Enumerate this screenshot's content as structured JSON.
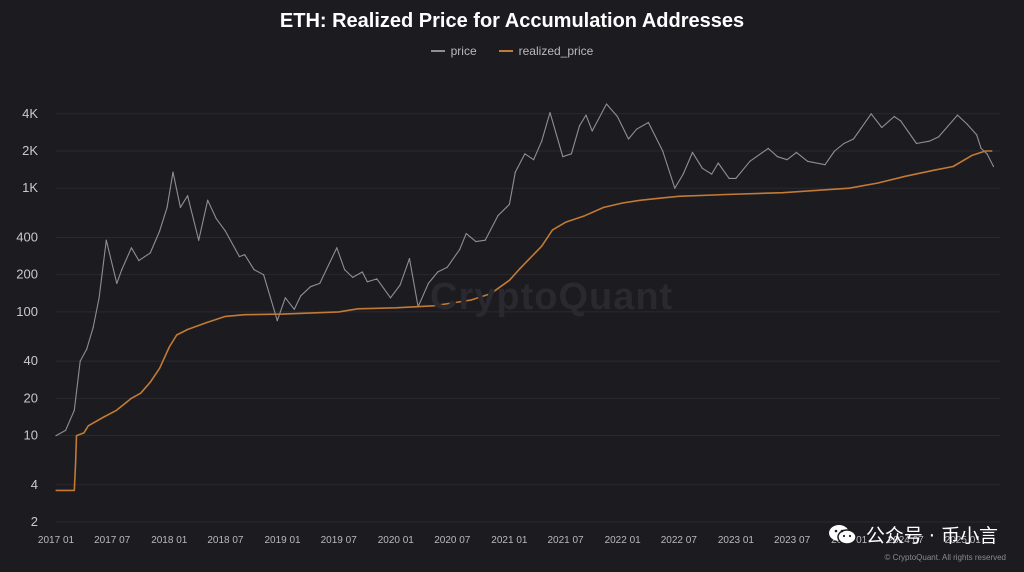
{
  "chart_data": {
    "type": "line",
    "title": "ETH: Realized Price for Accumulation Addresses",
    "yscale": "log",
    "ylim": [
      2,
      6000
    ],
    "xlim": [
      "2017-01",
      "2025-05"
    ],
    "y_ticks": [
      {
        "value": 2,
        "label": "2"
      },
      {
        "value": 4,
        "label": "4"
      },
      {
        "value": 10,
        "label": "10"
      },
      {
        "value": 20,
        "label": "20"
      },
      {
        "value": 40,
        "label": "40"
      },
      {
        "value": 100,
        "label": "100"
      },
      {
        "value": 200,
        "label": "200"
      },
      {
        "value": 400,
        "label": "400"
      },
      {
        "value": 1000,
        "label": "1K"
      },
      {
        "value": 2000,
        "label": "2K"
      },
      {
        "value": 4000,
        "label": "4K"
      }
    ],
    "x_ticks": [
      {
        "date": "2017-01",
        "label": "2017 01"
      },
      {
        "date": "2017-07",
        "label": "2017 07"
      },
      {
        "date": "2018-01",
        "label": "2018 01"
      },
      {
        "date": "2018-07",
        "label": "2018 07"
      },
      {
        "date": "2019-01",
        "label": "2019 01"
      },
      {
        "date": "2019-07",
        "label": "2019 07"
      },
      {
        "date": "2020-01",
        "label": "2020 01"
      },
      {
        "date": "2020-07",
        "label": "2020 07"
      },
      {
        "date": "2021-01",
        "label": "2021 01"
      },
      {
        "date": "2021-07",
        "label": "2021 07"
      },
      {
        "date": "2022-01",
        "label": "2022 01"
      },
      {
        "date": "2022-07",
        "label": "2022 07"
      },
      {
        "date": "2023-01",
        "label": "2023 01"
      },
      {
        "date": "2023-07",
        "label": "2023 07"
      },
      {
        "date": "2024-01",
        "label": "2024 01"
      },
      {
        "date": "2024-07",
        "label": "2024 07"
      },
      {
        "date": "2025-01",
        "label": "2025 01"
      }
    ],
    "legend_position": "top-center",
    "series": [
      {
        "name": "price",
        "color": "#8e8e96",
        "points": [
          [
            "2017-01-01",
            10
          ],
          [
            "2017-02-01",
            11
          ],
          [
            "2017-03-01",
            16
          ],
          [
            "2017-03-20",
            40
          ],
          [
            "2017-04-10",
            50
          ],
          [
            "2017-05-01",
            75
          ],
          [
            "2017-05-20",
            130
          ],
          [
            "2017-06-12",
            380
          ],
          [
            "2017-07-16",
            170
          ],
          [
            "2017-08-01",
            220
          ],
          [
            "2017-09-01",
            330
          ],
          [
            "2017-09-25",
            260
          ],
          [
            "2017-11-01",
            300
          ],
          [
            "2017-12-01",
            450
          ],
          [
            "2017-12-25",
            700
          ],
          [
            "2018-01-13",
            1350
          ],
          [
            "2018-02-06",
            700
          ],
          [
            "2018-03-01",
            870
          ],
          [
            "2018-04-06",
            380
          ],
          [
            "2018-05-05",
            800
          ],
          [
            "2018-06-01",
            570
          ],
          [
            "2018-07-01",
            450
          ],
          [
            "2018-08-15",
            280
          ],
          [
            "2018-09-01",
            290
          ],
          [
            "2018-10-01",
            220
          ],
          [
            "2018-11-01",
            200
          ],
          [
            "2018-12-15",
            85
          ],
          [
            "2019-01-10",
            130
          ],
          [
            "2019-02-08",
            105
          ],
          [
            "2019-03-01",
            135
          ],
          [
            "2019-04-01",
            160
          ],
          [
            "2019-05-01",
            170
          ],
          [
            "2019-06-25",
            330
          ],
          [
            "2019-07-20",
            220
          ],
          [
            "2019-08-15",
            190
          ],
          [
            "2019-09-15",
            210
          ],
          [
            "2019-10-01",
            175
          ],
          [
            "2019-11-01",
            185
          ],
          [
            "2019-12-15",
            130
          ],
          [
            "2020-01-15",
            165
          ],
          [
            "2020-02-14",
            270
          ],
          [
            "2020-03-13",
            110
          ],
          [
            "2020-04-15",
            170
          ],
          [
            "2020-05-15",
            210
          ],
          [
            "2020-06-15",
            230
          ],
          [
            "2020-07-25",
            320
          ],
          [
            "2020-08-15",
            430
          ],
          [
            "2020-09-15",
            370
          ],
          [
            "2020-10-15",
            380
          ],
          [
            "2020-11-25",
            600
          ],
          [
            "2021-01-01",
            740
          ],
          [
            "2021-01-20",
            1350
          ],
          [
            "2021-02-20",
            1900
          ],
          [
            "2021-03-20",
            1700
          ],
          [
            "2021-04-15",
            2400
          ],
          [
            "2021-05-12",
            4100
          ],
          [
            "2021-06-22",
            1800
          ],
          [
            "2021-07-20",
            1900
          ],
          [
            "2021-08-15",
            3200
          ],
          [
            "2021-09-05",
            3900
          ],
          [
            "2021-09-25",
            2900
          ],
          [
            "2021-11-10",
            4800
          ],
          [
            "2021-12-15",
            3800
          ],
          [
            "2022-01-20",
            2500
          ],
          [
            "2022-02-15",
            3000
          ],
          [
            "2022-03-25",
            3400
          ],
          [
            "2022-05-10",
            2000
          ],
          [
            "2022-06-18",
            1000
          ],
          [
            "2022-07-15",
            1300
          ],
          [
            "2022-08-14",
            1950
          ],
          [
            "2022-09-15",
            1450
          ],
          [
            "2022-10-15",
            1300
          ],
          [
            "2022-11-05",
            1600
          ],
          [
            "2022-12-10",
            1200
          ],
          [
            "2023-01-01",
            1200
          ],
          [
            "2023-02-15",
            1650
          ],
          [
            "2023-04-15",
            2100
          ],
          [
            "2023-05-15",
            1800
          ],
          [
            "2023-06-15",
            1700
          ],
          [
            "2023-07-15",
            1950
          ],
          [
            "2023-08-20",
            1650
          ],
          [
            "2023-10-15",
            1550
          ],
          [
            "2023-11-15",
            2000
          ],
          [
            "2023-12-15",
            2300
          ],
          [
            "2024-01-15",
            2500
          ],
          [
            "2024-03-12",
            4000
          ],
          [
            "2024-04-15",
            3100
          ],
          [
            "2024-05-25",
            3800
          ],
          [
            "2024-06-15",
            3500
          ],
          [
            "2024-08-05",
            2300
          ],
          [
            "2024-09-15",
            2400
          ],
          [
            "2024-10-15",
            2600
          ],
          [
            "2024-12-15",
            3900
          ],
          [
            "2025-01-15",
            3300
          ],
          [
            "2025-02-15",
            2700
          ],
          [
            "2025-03-01",
            2100
          ],
          [
            "2025-03-20",
            1900
          ],
          [
            "2025-04-10",
            1500
          ]
        ]
      },
      {
        "name": "realized_price",
        "color": "#c27a35",
        "points": [
          [
            "2017-01-01",
            3.6
          ],
          [
            "2017-03-01",
            3.6
          ],
          [
            "2017-03-05",
            6
          ],
          [
            "2017-03-08",
            10
          ],
          [
            "2017-04-01",
            10.5
          ],
          [
            "2017-04-15",
            12
          ],
          [
            "2017-06-01",
            14
          ],
          [
            "2017-07-15",
            16
          ],
          [
            "2017-09-01",
            20
          ],
          [
            "2017-10-01",
            22
          ],
          [
            "2017-11-01",
            27
          ],
          [
            "2017-12-01",
            35
          ],
          [
            "2018-01-01",
            52
          ],
          [
            "2018-01-25",
            65
          ],
          [
            "2018-03-01",
            72
          ],
          [
            "2018-05-01",
            82
          ],
          [
            "2018-07-01",
            92
          ],
          [
            "2018-09-01",
            95
          ],
          [
            "2019-01-01",
            96
          ],
          [
            "2019-07-01",
            100
          ],
          [
            "2019-09-01",
            106
          ],
          [
            "2020-01-01",
            108
          ],
          [
            "2020-05-01",
            112
          ],
          [
            "2020-07-01",
            118
          ],
          [
            "2020-09-01",
            125
          ],
          [
            "2020-11-01",
            140
          ],
          [
            "2021-01-01",
            180
          ],
          [
            "2021-02-01",
            220
          ],
          [
            "2021-03-01",
            260
          ],
          [
            "2021-04-15",
            340
          ],
          [
            "2021-05-20",
            460
          ],
          [
            "2021-07-01",
            530
          ],
          [
            "2021-09-01",
            600
          ],
          [
            "2021-11-01",
            700
          ],
          [
            "2022-01-01",
            760
          ],
          [
            "2022-03-01",
            800
          ],
          [
            "2022-05-01",
            830
          ],
          [
            "2022-07-01",
            860
          ],
          [
            "2022-12-01",
            890
          ],
          [
            "2023-06-01",
            920
          ],
          [
            "2024-01-01",
            1000
          ],
          [
            "2024-04-01",
            1100
          ],
          [
            "2024-07-01",
            1250
          ],
          [
            "2024-10-01",
            1400
          ],
          [
            "2024-12-01",
            1500
          ],
          [
            "2025-02-01",
            1850
          ],
          [
            "2025-03-15",
            2000
          ],
          [
            "2025-04-05",
            2000
          ]
        ]
      }
    ]
  },
  "legend": {
    "price": "price",
    "realized_price": "realized_price"
  },
  "watermark": "CryptoQuant",
  "credit": "© CryptoQuant. All rights reserved",
  "wechat_label": "公众号 · 币小言",
  "colors": {
    "background": "#1c1b20",
    "price": "#8e8e96",
    "realized_price": "#c27a35"
  }
}
